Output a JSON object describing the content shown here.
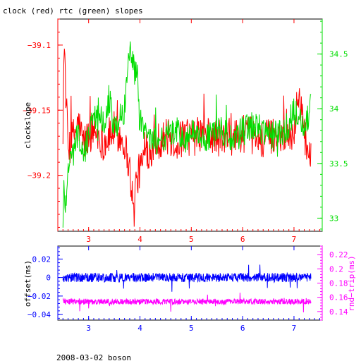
{
  "chart_data": [
    {
      "type": "line",
      "title": "clock (red) rtc (green) slopes",
      "x_range": [
        2.4,
        7.55
      ],
      "x_ticks": [
        3,
        4,
        5,
        6,
        7
      ],
      "x_tick_labels": [
        "3",
        "4",
        "5",
        "6",
        "7"
      ],
      "axes": {
        "left": {
          "label": "clockslope",
          "range": [
            -39.243,
            -39.08
          ],
          "ticks": [
            -39.1,
            -39.15,
            -39.2
          ],
          "tick_labels": [
            "−39.1",
            "−39.15",
            "−39.2"
          ],
          "color": "#ff0000"
        },
        "right": {
          "label": "",
          "range": [
            32.88,
            34.82
          ],
          "ticks": [
            33,
            33.5,
            34,
            34.5
          ],
          "tick_labels": [
            "33",
            "33.5",
            "34",
            "34.5"
          ],
          "color": "#00dd00"
        }
      },
      "series": [
        {
          "name": "clock",
          "color": "#ff0000",
          "axis": "left",
          "x": [
            2.5,
            2.52,
            2.55,
            2.6,
            2.7,
            2.8,
            2.9,
            3.0,
            3.1,
            3.2,
            3.3,
            3.4,
            3.5,
            3.6,
            3.7,
            3.8,
            3.85,
            3.88,
            3.9,
            4.0,
            4.1,
            4.2,
            4.3,
            4.5,
            4.7,
            4.9,
            5.0,
            5.2,
            5.4,
            5.6,
            5.8,
            6.0,
            6.2,
            6.4,
            6.6,
            6.8,
            6.9,
            7.0,
            7.1,
            7.2,
            7.3,
            7.33
          ],
          "y": [
            -39.17,
            -39.095,
            -39.13,
            -39.18,
            -39.17,
            -39.16,
            -39.175,
            -39.17,
            -39.165,
            -39.17,
            -39.175,
            -39.17,
            -39.165,
            -39.17,
            -39.175,
            -39.195,
            -39.215,
            -39.235,
            -39.21,
            -39.195,
            -39.185,
            -39.18,
            -39.175,
            -39.17,
            -39.175,
            -39.17,
            -39.172,
            -39.168,
            -39.17,
            -39.172,
            -39.17,
            -39.168,
            -39.17,
            -39.172,
            -39.17,
            -39.168,
            -39.17,
            -39.165,
            -39.135,
            -39.17,
            -39.18,
            -39.19
          ]
        },
        {
          "name": "rtc",
          "color": "#00dd00",
          "axis": "right",
          "x": [
            2.5,
            2.52,
            2.55,
            2.6,
            2.7,
            2.8,
            2.9,
            3.0,
            3.1,
            3.2,
            3.3,
            3.4,
            3.5,
            3.6,
            3.7,
            3.75,
            3.8,
            3.85,
            3.9,
            3.95,
            4.0,
            4.1,
            4.2,
            4.3,
            4.5,
            4.7,
            4.9,
            5.0,
            5.2,
            5.4,
            5.6,
            5.8,
            6.0,
            6.2,
            6.4,
            6.6,
            6.8,
            6.9,
            7.0,
            7.1,
            7.2,
            7.3,
            7.33
          ],
          "y": [
            32.9,
            33.3,
            33.1,
            33.5,
            33.6,
            33.8,
            33.5,
            33.8,
            33.9,
            34.0,
            33.9,
            34.1,
            33.8,
            33.9,
            34.0,
            34.3,
            34.55,
            34.5,
            34.3,
            34.4,
            33.9,
            33.8,
            33.75,
            33.7,
            33.75,
            33.8,
            33.7,
            33.8,
            33.7,
            33.75,
            33.8,
            33.7,
            33.8,
            33.85,
            33.8,
            33.75,
            33.8,
            33.85,
            34.0,
            33.9,
            33.85,
            33.95,
            34.02
          ]
        }
      ]
    },
    {
      "type": "line",
      "x_range": [
        2.4,
        7.55
      ],
      "x_ticks": [
        3,
        4,
        5,
        6,
        7
      ],
      "x_tick_labels": [
        "3",
        "4",
        "5",
        "6",
        "7"
      ],
      "axes": {
        "left": {
          "label": "offset(ms)",
          "range": [
            -0.046,
            0.034
          ],
          "ticks": [
            0.02,
            0,
            -0.02,
            -0.04
          ],
          "tick_labels": [
            "0.02",
            "0",
            "−0.02",
            "−0.04"
          ],
          "color": "#0000ff"
        },
        "right": {
          "label": "rnd−trip(ms)",
          "range": [
            0.128,
            0.232
          ],
          "ticks": [
            0.14,
            0.16,
            0.18,
            0.2,
            0.22
          ],
          "tick_labels": [
            "0.14",
            "0.16",
            "0.18",
            "0.2",
            "0.22"
          ],
          "color": "#ff00ff"
        }
      },
      "series": [
        {
          "name": "offset",
          "color": "#0000ff",
          "axis": "left",
          "x_range": [
            2.5,
            7.33
          ],
          "level": 0.0,
          "noise": 0.005
        },
        {
          "name": "rnd-trip",
          "color": "#ff00ff",
          "axis": "right",
          "x_range": [
            2.5,
            7.33
          ],
          "level": 0.154,
          "noise": 0.004
        }
      ]
    }
  ],
  "footer": {
    "caption": "2008-03-02 boson"
  }
}
